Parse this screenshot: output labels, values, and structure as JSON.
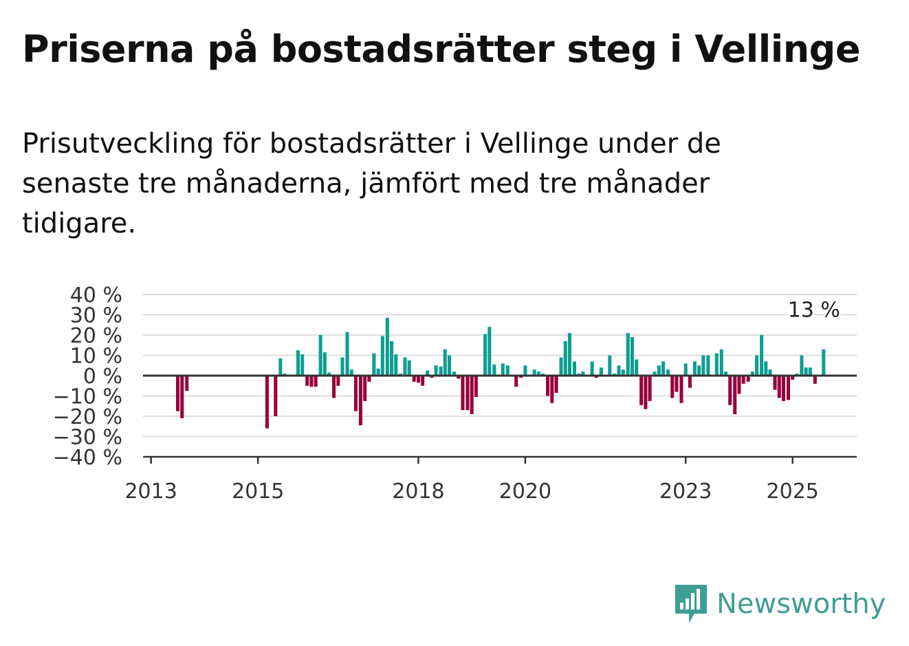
{
  "title": "Priserna på bostadsrätter steg i Vellinge",
  "subtitle": "Prisutveckling för bostadsrätter i Vellinge under de senaste tre månaderna, jämfört med tre månader tidigare.",
  "logo_text": "Newsworthy",
  "colors": {
    "positive": "#0e9e92",
    "negative": "#98003c",
    "grid": "#dddddd",
    "axis": "#333333",
    "logo": "#3f9e92"
  },
  "chart_data": {
    "type": "bar",
    "ylim": [
      -40,
      40
    ],
    "ylabel": "",
    "xlabel": "",
    "y_ticks": [
      40,
      30,
      20,
      10,
      0,
      -10,
      -20,
      -30,
      -40
    ],
    "y_tick_labels": [
      "40 %",
      "30 %",
      "20 %",
      "10 %",
      "0 %",
      "−10 %",
      "−20 %",
      "−30 %",
      "−40 %"
    ],
    "x_ticks": [
      "2013",
      "2015",
      "2018",
      "2020",
      "2023",
      "2025"
    ],
    "x_tick_positions": [
      2013.0,
      2015.0,
      2018.0,
      2020.0,
      2023.0,
      2025.0
    ],
    "x_range": [
      2012.85,
      2026.2
    ],
    "grid": true,
    "annotation": {
      "text": "13 %",
      "x": 2025.4,
      "y": 13
    },
    "bars": [
      [
        2013.5,
        -17.5
      ],
      [
        2013.58,
        -21
      ],
      [
        2013.67,
        -7.5
      ],
      [
        2015.17,
        -26
      ],
      [
        2015.33,
        -20
      ],
      [
        2015.42,
        8.5
      ],
      [
        2015.5,
        1
      ],
      [
        2015.75,
        12.5
      ],
      [
        2015.83,
        10.5
      ],
      [
        2015.92,
        -5
      ],
      [
        2016.0,
        -5.5
      ],
      [
        2016.08,
        -5.5
      ],
      [
        2016.17,
        20
      ],
      [
        2016.25,
        11.5
      ],
      [
        2016.33,
        1.5
      ],
      [
        2016.42,
        -11
      ],
      [
        2016.5,
        -5
      ],
      [
        2016.58,
        9
      ],
      [
        2016.67,
        21.5
      ],
      [
        2016.75,
        3
      ],
      [
        2016.83,
        -17.5
      ],
      [
        2016.92,
        -24.5
      ],
      [
        2017.0,
        -12.5
      ],
      [
        2017.08,
        -3
      ],
      [
        2017.17,
        11
      ],
      [
        2017.25,
        3.5
      ],
      [
        2017.33,
        19.5
      ],
      [
        2017.42,
        28.5
      ],
      [
        2017.5,
        17
      ],
      [
        2017.58,
        10.5
      ],
      [
        2017.67,
        1
      ],
      [
        2017.75,
        9
      ],
      [
        2017.83,
        7.5
      ],
      [
        2017.92,
        -3
      ],
      [
        2018.0,
        -3.5
      ],
      [
        2018.08,
        -5
      ],
      [
        2018.17,
        2.5
      ],
      [
        2018.25,
        -1
      ],
      [
        2018.33,
        5
      ],
      [
        2018.42,
        4.5
      ],
      [
        2018.5,
        13
      ],
      [
        2018.58,
        10
      ],
      [
        2018.67,
        2
      ],
      [
        2018.75,
        -1.5
      ],
      [
        2018.83,
        -17
      ],
      [
        2018.92,
        -17
      ],
      [
        2019.0,
        -19
      ],
      [
        2019.08,
        -10.5
      ],
      [
        2019.25,
        20.5
      ],
      [
        2019.33,
        24
      ],
      [
        2019.42,
        5.5
      ],
      [
        2019.58,
        6
      ],
      [
        2019.67,
        5
      ],
      [
        2019.83,
        -5.5
      ],
      [
        2019.92,
        -1
      ],
      [
        2020.0,
        5
      ],
      [
        2020.08,
        0.5
      ],
      [
        2020.17,
        3
      ],
      [
        2020.25,
        2
      ],
      [
        2020.33,
        1
      ],
      [
        2020.42,
        -10
      ],
      [
        2020.5,
        -13.5
      ],
      [
        2020.58,
        -8.5
      ],
      [
        2020.67,
        9
      ],
      [
        2020.75,
        17
      ],
      [
        2020.83,
        21
      ],
      [
        2020.92,
        7
      ],
      [
        2021.0,
        1
      ],
      [
        2021.08,
        2
      ],
      [
        2021.25,
        7
      ],
      [
        2021.33,
        -1
      ],
      [
        2021.42,
        4
      ],
      [
        2021.58,
        10
      ],
      [
        2021.67,
        1
      ],
      [
        2021.75,
        5
      ],
      [
        2021.83,
        3
      ],
      [
        2021.92,
        21
      ],
      [
        2022.0,
        19
      ],
      [
        2022.08,
        8
      ],
      [
        2022.17,
        -14.5
      ],
      [
        2022.25,
        -16.5
      ],
      [
        2022.33,
        -12.5
      ],
      [
        2022.42,
        2
      ],
      [
        2022.5,
        5
      ],
      [
        2022.58,
        7
      ],
      [
        2022.67,
        3
      ],
      [
        2022.75,
        -11
      ],
      [
        2022.83,
        -8
      ],
      [
        2022.92,
        -13.5
      ],
      [
        2023.0,
        6
      ],
      [
        2023.08,
        -6
      ],
      [
        2023.17,
        7
      ],
      [
        2023.25,
        5
      ],
      [
        2023.33,
        10
      ],
      [
        2023.42,
        10
      ],
      [
        2023.58,
        11
      ],
      [
        2023.67,
        13
      ],
      [
        2023.75,
        2
      ],
      [
        2023.83,
        -14.5
      ],
      [
        2023.92,
        -19
      ],
      [
        2024.0,
        -9
      ],
      [
        2024.08,
        -4
      ],
      [
        2024.17,
        -3
      ],
      [
        2024.25,
        2
      ],
      [
        2024.33,
        10
      ],
      [
        2024.42,
        20
      ],
      [
        2024.5,
        7
      ],
      [
        2024.58,
        3
      ],
      [
        2024.67,
        -7
      ],
      [
        2024.75,
        -11
      ],
      [
        2024.83,
        -12.5
      ],
      [
        2024.92,
        -12
      ],
      [
        2025.0,
        -2
      ],
      [
        2025.08,
        1
      ],
      [
        2025.17,
        10
      ],
      [
        2025.25,
        4
      ],
      [
        2025.33,
        4
      ],
      [
        2025.42,
        -4
      ],
      [
        2025.58,
        13
      ]
    ]
  }
}
